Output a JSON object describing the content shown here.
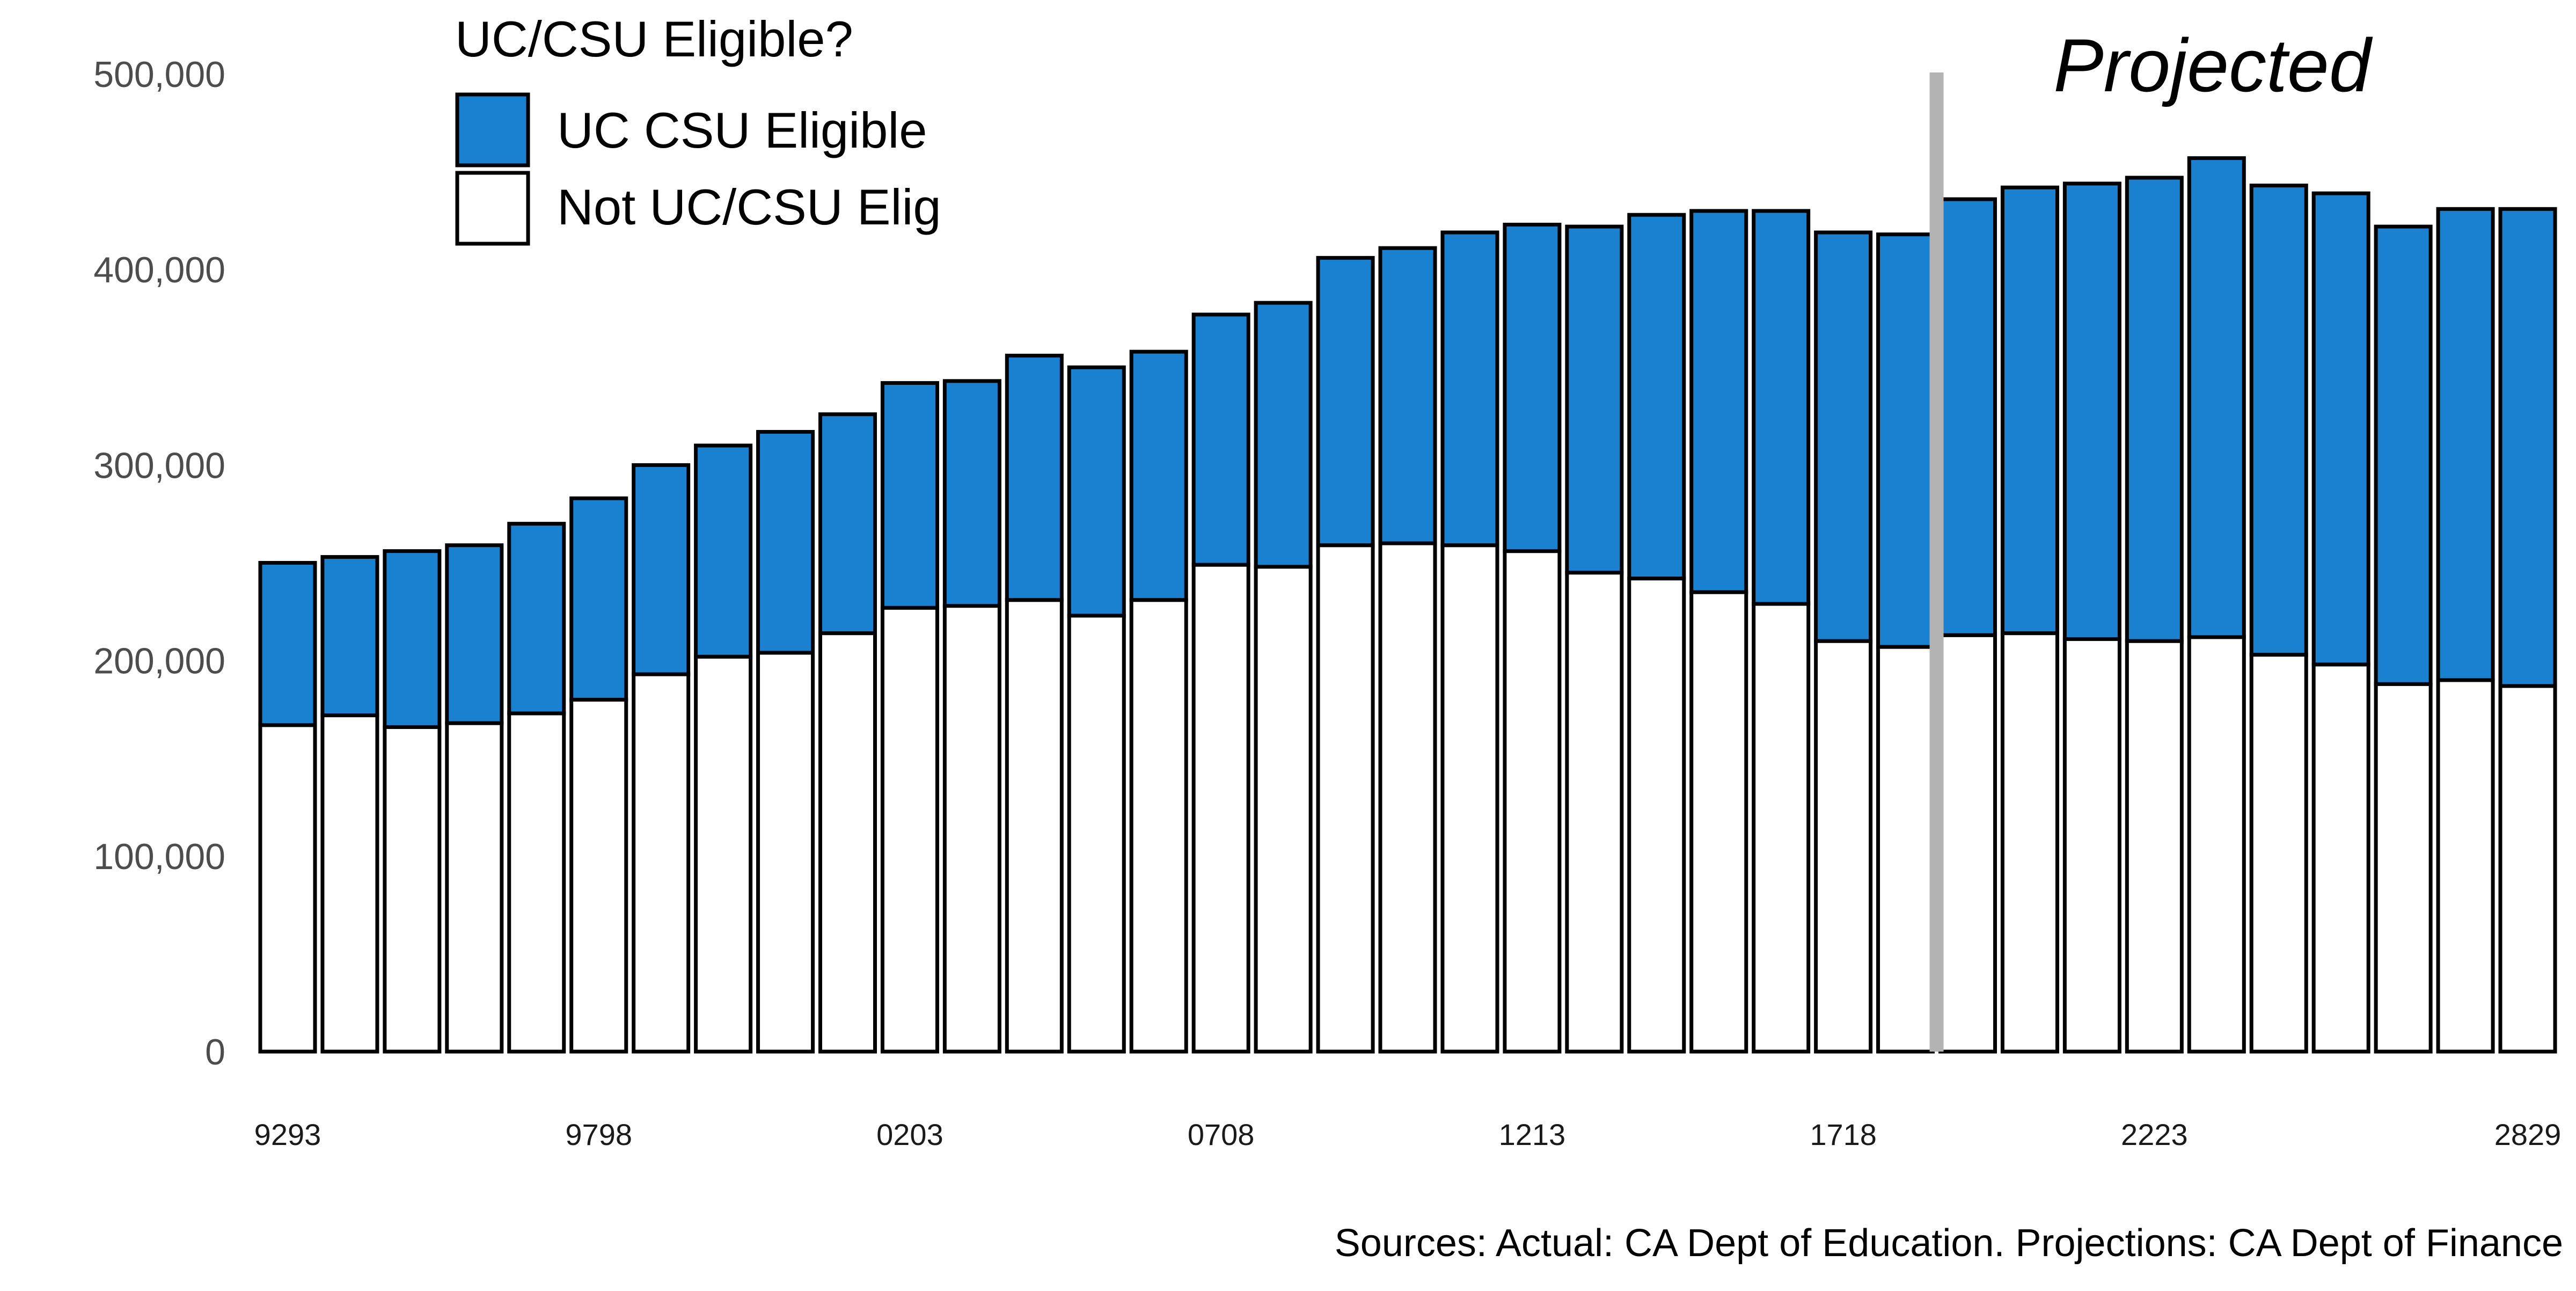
{
  "chart_data": {
    "type": "bar",
    "stacked": true,
    "legend": {
      "title": "UC/CSU Eligible?",
      "placement": "top-left",
      "entries": [
        {
          "label": "UC CSU Eligible",
          "color": "#1a80d0"
        },
        {
          "label": "Not UC/CSU Elig",
          "color": "#ffffff"
        }
      ]
    },
    "annotation": "Projected",
    "source_note": "Sources: Actual: CA Dept of Education. Projections: CA Dept of Finance",
    "ylim": [
      0,
      500000
    ],
    "yticks": [
      {
        "value": 0,
        "label": "0"
      },
      {
        "value": 100000,
        "label": "100,000"
      },
      {
        "value": 200000,
        "label": "200,000"
      },
      {
        "value": 300000,
        "label": "300,000"
      },
      {
        "value": 400000,
        "label": "400,000"
      },
      {
        "value": 500000,
        "label": "500,000"
      }
    ],
    "xtick_labels": [
      {
        "index": 0,
        "label": "9293"
      },
      {
        "index": 5,
        "label": "9798"
      },
      {
        "index": 10,
        "label": "0203"
      },
      {
        "index": 15,
        "label": "0708"
      },
      {
        "index": 20,
        "label": "1213"
      },
      {
        "index": 25,
        "label": "1718"
      },
      {
        "index": 30,
        "label": "2223"
      },
      {
        "index": 36,
        "label": "2829"
      }
    ],
    "projection_starts_after_index": 26,
    "bar_count": 37,
    "series": [
      {
        "name": "Not UC/CSU Elig",
        "color": "#ffffff",
        "values": [
          167000,
          172000,
          166000,
          168000,
          173000,
          180000,
          193000,
          202000,
          204000,
          214000,
          227000,
          228000,
          231000,
          223000,
          231000,
          249000,
          248000,
          259000,
          260000,
          259000,
          256000,
          245000,
          242000,
          235000,
          229000,
          210000,
          207000,
          213000,
          214000,
          211000,
          210000,
          212000,
          203000,
          198000,
          188000,
          190000,
          187000
        ]
      },
      {
        "name": "UC CSU Eligible",
        "color": "#1a80d0",
        "values": [
          83000,
          81000,
          90000,
          91000,
          97000,
          103000,
          107000,
          108000,
          113000,
          112000,
          115000,
          115000,
          125000,
          127000,
          127000,
          128000,
          135000,
          147000,
          151000,
          160000,
          167000,
          177000,
          186000,
          195000,
          201000,
          209000,
          211000,
          223000,
          228000,
          233000,
          237000,
          245000,
          240000,
          241000,
          234000,
          241000,
          244000
        ]
      }
    ]
  }
}
